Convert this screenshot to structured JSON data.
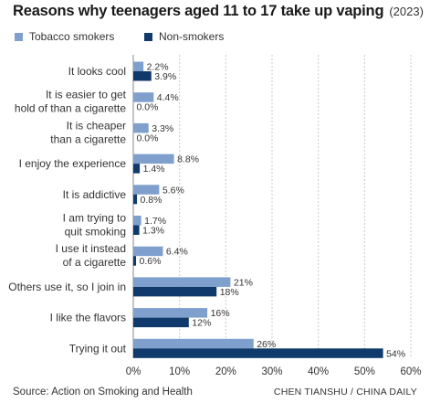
{
  "header": {
    "title": "Reasons why teenagers aged 11 to 17 take up vaping",
    "subtitle": "(2023)"
  },
  "footer": {
    "source": "Source: Action on Smoking and Health",
    "credit": "CHEN TIANSHU / CHINA DAILY"
  },
  "chart_data": {
    "type": "bar",
    "orientation": "horizontal",
    "title": "Reasons why teenagers aged 11 to 17 take up vaping",
    "subtitle": "(2023)",
    "categories": [
      [
        "It looks cool"
      ],
      [
        "It is easier to get",
        "hold of than a cigarette"
      ],
      [
        "It is cheaper",
        "than a cigarette"
      ],
      [
        "I enjoy the experience"
      ],
      [
        "It is addictive"
      ],
      [
        "I am trying to",
        "quit smoking"
      ],
      [
        "I use it instead",
        "of a cigarette"
      ],
      [
        "Others use it, so I join in"
      ],
      [
        "I like the flavors"
      ],
      [
        "Trying it out"
      ]
    ],
    "series": [
      {
        "name": "Tobacco smokers",
        "color": "#7f9fcc",
        "values": [
          2.2,
          4.4,
          3.3,
          8.8,
          5.6,
          1.7,
          6.4,
          21,
          16,
          26
        ],
        "labels": [
          "2.2%",
          "4.4%",
          "3.3%",
          "8.8%",
          "5.6%",
          "1.7%",
          "6.4%",
          "21%",
          "16%",
          "26%"
        ]
      },
      {
        "name": "Non-smokers",
        "color": "#0f3a6b",
        "values": [
          3.9,
          0.0,
          0.0,
          1.4,
          0.8,
          1.3,
          0.6,
          18,
          12,
          54
        ],
        "labels": [
          "3.9%",
          "0.0%",
          "0.0%",
          "1.4%",
          "0.8%",
          "1.3%",
          "0.6%",
          "18%",
          "12%",
          "54%"
        ]
      }
    ],
    "xlim": [
      0,
      60
    ],
    "xticks": [
      "0%",
      "10%",
      "20%",
      "30%",
      "40%",
      "50%",
      "60%"
    ],
    "xlabel": "",
    "ylabel": "",
    "grid": true,
    "legend": "top-left"
  }
}
